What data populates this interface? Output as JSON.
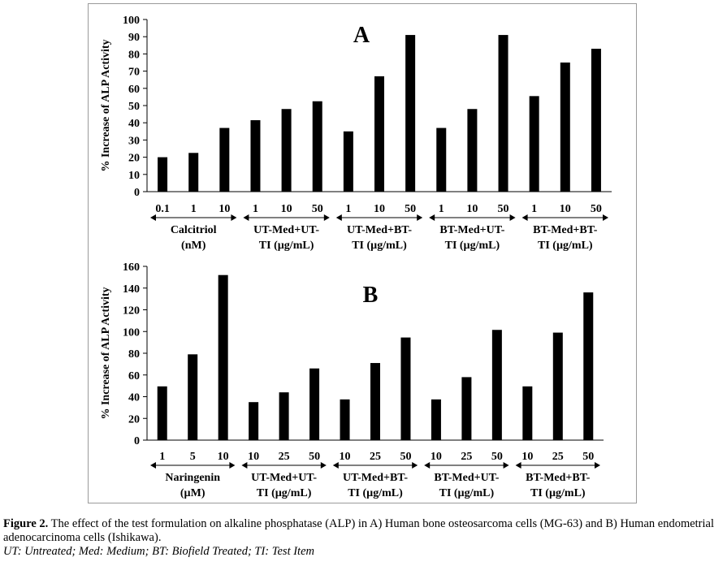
{
  "charts": [
    {
      "type": "bar",
      "panel_label": "A",
      "ylabel": "% Increase of ALP Activity",
      "ylim": [
        0,
        100
      ],
      "yticks": [
        0,
        10,
        20,
        30,
        40,
        50,
        60,
        70,
        80,
        90,
        100
      ],
      "groups": [
        {
          "label_lines": [
            "Calcitriol",
            "(nM)"
          ],
          "ticks": [
            "0.1",
            "1",
            "10"
          ],
          "values": [
            20,
            22.5,
            37
          ]
        },
        {
          "label_lines": [
            "UT-Med+UT-",
            "TI (µg/mL)"
          ],
          "ticks": [
            "1",
            "10",
            "50"
          ],
          "values": [
            41.5,
            48,
            52.5
          ]
        },
        {
          "label_lines": [
            "UT-Med+BT-",
            "TI (µg/mL)"
          ],
          "ticks": [
            "1",
            "10",
            "50"
          ],
          "values": [
            35,
            67,
            91
          ]
        },
        {
          "label_lines": [
            "BT-Med+UT-",
            "TI (µg/mL)"
          ],
          "ticks": [
            "1",
            "10",
            "50"
          ],
          "values": [
            37,
            48,
            91
          ]
        },
        {
          "label_lines": [
            "BT-Med+BT-",
            "TI (µg/mL)"
          ],
          "ticks": [
            "1",
            "10",
            "50"
          ],
          "values": [
            55.5,
            75,
            83
          ]
        }
      ]
    },
    {
      "type": "bar",
      "panel_label": "B",
      "ylabel": "% Increase of ALP Activity",
      "ylim": [
        0,
        160
      ],
      "yticks": [
        0,
        20,
        40,
        60,
        80,
        100,
        120,
        140,
        160
      ],
      "groups": [
        {
          "label_lines": [
            "Naringenin",
            "(µM)"
          ],
          "ticks": [
            "1",
            "5",
            "10"
          ],
          "values": [
            49.5,
            79,
            152
          ]
        },
        {
          "label_lines": [
            "UT-Med+UT-",
            "TI (µg/mL)"
          ],
          "ticks": [
            "10",
            "25",
            "50"
          ],
          "values": [
            35,
            44,
            66
          ]
        },
        {
          "label_lines": [
            "UT-Med+BT-",
            "TI (µg/mL)"
          ],
          "ticks": [
            "10",
            "25",
            "50"
          ],
          "values": [
            37.5,
            71,
            94.5
          ]
        },
        {
          "label_lines": [
            "BT-Med+UT-",
            "TI (µg/mL)"
          ],
          "ticks": [
            "10",
            "25",
            "50"
          ],
          "values": [
            37.5,
            58,
            101.5
          ]
        },
        {
          "label_lines": [
            "BT-Med+BT-",
            "TI (µg/mL)"
          ],
          "ticks": [
            "10",
            "25",
            "50"
          ],
          "values": [
            49.5,
            99,
            136
          ]
        }
      ]
    }
  ],
  "caption": {
    "label": "Figure 2.",
    "text": " The effect of the test formulation on alkaline phosphatase (ALP) in A) Human bone osteosarcoma cells (MG-63) and B) Human endometrial adenocarcinoma cells (Ishikawa).",
    "legend": "UT: Untreated; Med: Medium; BT: Biofield Treated; TI: Test Item"
  }
}
